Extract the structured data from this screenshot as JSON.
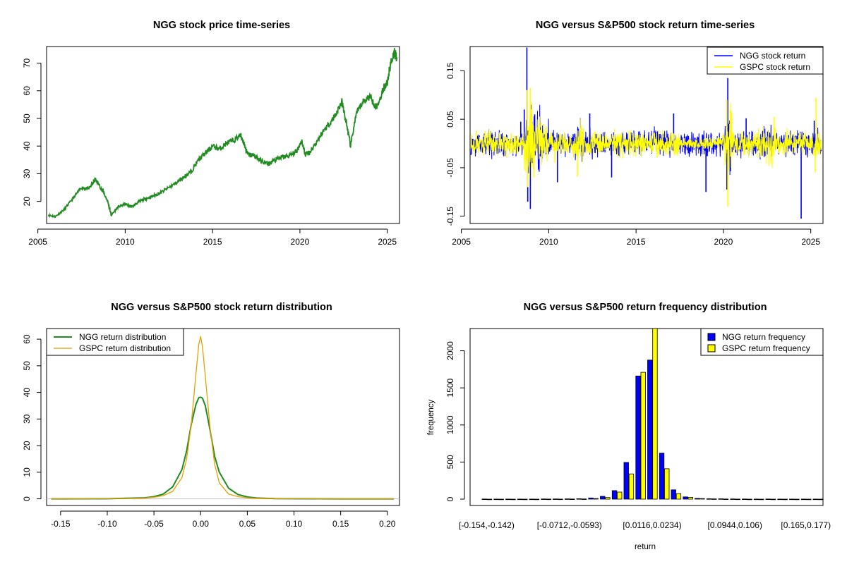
{
  "chart_data": [
    {
      "id": "p1",
      "type": "line",
      "title": "NGG stock price time-series",
      "xlabel": "",
      "ylabel": "",
      "xlim": [
        2005.5,
        2025.7
      ],
      "ylim": [
        12,
        76
      ],
      "xticks": [
        2005,
        2010,
        2015,
        2020,
        2025
      ],
      "yticks": [
        20,
        30,
        40,
        50,
        60,
        70
      ],
      "series": [
        {
          "name": "NGG stock price",
          "color": "#228B22",
          "x": [
            2005.6,
            2006.0,
            2006.5,
            2007.0,
            2007.5,
            2007.9,
            2008.3,
            2008.7,
            2009.0,
            2009.2,
            2009.6,
            2010.0,
            2010.4,
            2010.8,
            2011.2,
            2011.6,
            2012.0,
            2012.5,
            2013.0,
            2013.4,
            2013.8,
            2014.2,
            2014.6,
            2015.0,
            2015.4,
            2015.8,
            2016.2,
            2016.6,
            2016.8,
            2017.0,
            2017.4,
            2017.8,
            2018.2,
            2018.6,
            2019.0,
            2019.4,
            2019.8,
            2020.1,
            2020.3,
            2020.6,
            2021.0,
            2021.4,
            2021.8,
            2022.1,
            2022.4,
            2022.7,
            2022.9,
            2023.2,
            2023.6,
            2024.0,
            2024.4,
            2024.8,
            2025.0,
            2025.2,
            2025.4,
            2025.55
          ],
          "values": [
            15,
            14.5,
            17,
            21,
            25,
            24.5,
            28,
            24,
            20,
            15,
            18,
            19,
            18,
            20,
            21,
            22,
            23,
            25,
            27,
            29,
            31,
            35,
            37.5,
            40,
            39,
            41,
            42,
            44,
            41,
            37,
            36.5,
            34.5,
            33.5,
            35,
            36,
            36.5,
            38,
            42,
            37,
            38,
            42,
            46,
            49,
            52,
            56,
            47,
            40,
            51,
            56,
            58,
            54,
            61,
            63,
            70,
            74,
            72
          ]
        }
      ]
    },
    {
      "id": "p2",
      "type": "line",
      "title": "NGG versus S&P500 stock return time-series",
      "xlim": [
        2005.5,
        2025.7
      ],
      "ylim": [
        -0.165,
        0.2
      ],
      "xticks": [
        2005,
        2010,
        2015,
        2020,
        2025
      ],
      "yticks": [
        -0.15,
        -0.05,
        0.05,
        0.15
      ],
      "ytick_labels": [
        "-0.15",
        "-0.05",
        "0.05",
        "0.15"
      ],
      "legend_position": "top-right",
      "series": [
        {
          "name": "NGG stock return",
          "color": "#0000FF",
          "spikes": [
            [
              2008.75,
              0.198
            ],
            [
              2008.8,
              -0.12
            ],
            [
              2008.95,
              -0.135
            ],
            [
              2008.6,
              0.07
            ],
            [
              2009.2,
              0.06
            ],
            [
              2012.35,
              0.062
            ],
            [
              2017.15,
              0.062
            ],
            [
              2019.0,
              -0.1
            ],
            [
              2020.25,
              0.135
            ],
            [
              2020.2,
              -0.095
            ],
            [
              2021.3,
              0.052
            ],
            [
              2024.45,
              -0.155
            ],
            [
              2025.2,
              0.047
            ],
            [
              2008.4,
              0.045
            ],
            [
              2010.5,
              -0.08
            ],
            [
              2013.6,
              -0.07
            ]
          ]
        },
        {
          "name": "GSPC stock return",
          "color": "#FFFF00",
          "spikes": [
            [
              2008.75,
              0.11
            ],
            [
              2008.8,
              -0.09
            ],
            [
              2008.95,
              0.115
            ],
            [
              2009.15,
              -0.07
            ],
            [
              2011.65,
              -0.068
            ],
            [
              2020.2,
              0.09
            ],
            [
              2020.25,
              -0.13
            ],
            [
              2020.4,
              0.07
            ],
            [
              2022.9,
              0.055
            ],
            [
              2025.3,
              0.095
            ],
            [
              2025.25,
              -0.06
            ],
            [
              2010.35,
              -0.04
            ]
          ]
        }
      ]
    },
    {
      "id": "p3",
      "type": "line",
      "title": "NGG versus S&P500 stock return distribution",
      "xlim": [
        -0.165,
        0.213
      ],
      "ylim": [
        -2.5,
        64
      ],
      "xticks": [
        -0.15,
        -0.1,
        -0.05,
        0.0,
        0.05,
        0.1,
        0.15,
        0.2
      ],
      "xtick_labels": [
        "-0.15",
        "-0.10",
        "-0.05",
        "0.00",
        "0.05",
        "0.10",
        "0.15",
        "0.20"
      ],
      "yticks": [
        0,
        10,
        20,
        30,
        40,
        50,
        60
      ],
      "legend_position": "top-left",
      "series": [
        {
          "name": "NGG return distribution",
          "color": "#228B22",
          "x": [
            -0.16,
            -0.1,
            -0.08,
            -0.06,
            -0.05,
            -0.04,
            -0.03,
            -0.02,
            -0.015,
            -0.01,
            -0.005,
            -0.002,
            0.0,
            0.002,
            0.005,
            0.01,
            0.015,
            0.02,
            0.03,
            0.04,
            0.05,
            0.06,
            0.08,
            0.1,
            0.15,
            0.207
          ],
          "values": [
            0,
            0.05,
            0.2,
            0.4,
            0.8,
            1.8,
            4.5,
            11,
            18,
            28,
            35.5,
            38,
            38.2,
            37.8,
            35,
            26,
            16,
            10,
            4,
            1.6,
            0.7,
            0.3,
            0.1,
            0.05,
            0,
            0
          ]
        },
        {
          "name": "GSPC return distribution",
          "color": "#E69F00",
          "x": [
            -0.16,
            -0.1,
            -0.08,
            -0.06,
            -0.05,
            -0.04,
            -0.03,
            -0.02,
            -0.015,
            -0.01,
            -0.005,
            -0.002,
            0.0,
            0.002,
            0.005,
            0.01,
            0.015,
            0.02,
            0.03,
            0.04,
            0.05,
            0.06,
            0.08,
            0.1,
            0.15,
            0.207
          ],
          "values": [
            0,
            0.05,
            0.15,
            0.3,
            0.6,
            1.2,
            2.8,
            8,
            15,
            28,
            47,
            58,
            61,
            57,
            46,
            27,
            13,
            6,
            1.8,
            0.8,
            0.4,
            0.2,
            0.1,
            0.05,
            0,
            0
          ]
        }
      ]
    },
    {
      "id": "p4",
      "type": "bar",
      "title": "NGG versus S&P500 return frequency distribution",
      "xlabel": "return",
      "ylabel": "frequency",
      "ylim": [
        0,
        2300
      ],
      "yticks": [
        0,
        500,
        1000,
        1500,
        2000
      ],
      "legend_position": "top-right",
      "labeled_categories": [
        "[-0.154,-0.142)",
        "[-0.0712,-0.0593)",
        "[0.0116,0.0234)",
        "[0.0944,0.106)",
        "[0.165,0.177)"
      ],
      "labeled_category_indices": [
        0,
        7,
        14,
        21,
        27
      ],
      "series": [
        {
          "name": "NGG return frequency",
          "color": "#0000FF",
          "values": [
            2,
            1,
            1,
            1,
            1,
            3,
            3,
            4,
            6,
            16,
            38,
            115,
            495,
            1660,
            1875,
            620,
            125,
            30,
            10,
            6,
            5,
            3,
            2,
            1,
            2,
            1,
            1,
            1,
            1
          ]
        },
        {
          "name": "GSPC return frequency",
          "color": "#FFFF00",
          "values": [
            0,
            0,
            0,
            0,
            0,
            1,
            1,
            2,
            3,
            8,
            22,
            95,
            340,
            1710,
            2300,
            410,
            75,
            25,
            8,
            4,
            2,
            1,
            0,
            0,
            0,
            0,
            0,
            0,
            0
          ]
        }
      ]
    }
  ]
}
